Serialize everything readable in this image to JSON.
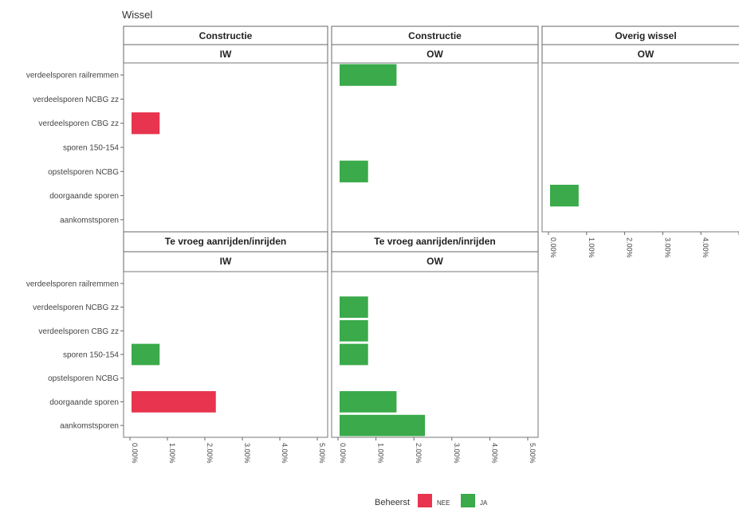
{
  "chart_data": {
    "type": "bar",
    "orientation": "horizontal",
    "title": "Wissel",
    "categories": [
      "verdeelsporen railremmen",
      "verdeelsporen NCBG zz",
      "verdeelsporen CBG zz",
      "sporen 150-154",
      "opstelsporen NCBG",
      "doorgaande sporen",
      "aankomstsporen"
    ],
    "xticks": [
      "0.00%",
      "1.00%",
      "2.00%",
      "3.00%",
      "4.00%",
      "5.00%"
    ],
    "xlim": [
      0,
      5
    ],
    "unit": "%",
    "grid": false,
    "legend": {
      "title": "Beheerst",
      "placement": "bottom",
      "entries": [
        {
          "label": "NEE",
          "color": "#e8344e"
        },
        {
          "label": "JA",
          "color": "#3aaa4a"
        }
      ]
    },
    "panels": [
      {
        "facet": "Constructie",
        "sub": "IW",
        "bars": [
          {
            "category": "verdeelsporen CBG zz",
            "value": 0.75,
            "beheerst": "NEE"
          }
        ]
      },
      {
        "facet": "Constructie",
        "sub": "OW",
        "bars": [
          {
            "category": "verdeelsporen railremmen",
            "value": 1.5,
            "beheerst": "JA"
          },
          {
            "category": "opstelsporen NCBG",
            "value": 0.75,
            "beheerst": "JA"
          }
        ]
      },
      {
        "facet": "Overig wissel",
        "sub": "OW",
        "bars": [
          {
            "category": "doorgaande sporen",
            "value": 0.75,
            "beheerst": "JA"
          }
        ]
      },
      {
        "facet": "Te vroeg aanrijden/inrijden",
        "sub": "IW",
        "bars": [
          {
            "category": "sporen 150-154",
            "value": 0.75,
            "beheerst": "JA"
          },
          {
            "category": "doorgaande sporen",
            "value": 2.25,
            "beheerst": "NEE"
          }
        ]
      },
      {
        "facet": "Te vroeg aanrijden/inrijden",
        "sub": "OW",
        "bars": [
          {
            "category": "verdeelsporen NCBG zz",
            "value": 0.75,
            "beheerst": "JA"
          },
          {
            "category": "verdeelsporen CBG zz",
            "value": 0.75,
            "beheerst": "JA"
          },
          {
            "category": "sporen 150-154",
            "value": 0.75,
            "beheerst": "JA"
          },
          {
            "category": "doorgaande sporen",
            "value": 1.5,
            "beheerst": "JA"
          },
          {
            "category": "aankomstsporen",
            "value": 2.25,
            "beheerst": "JA"
          }
        ]
      }
    ]
  }
}
